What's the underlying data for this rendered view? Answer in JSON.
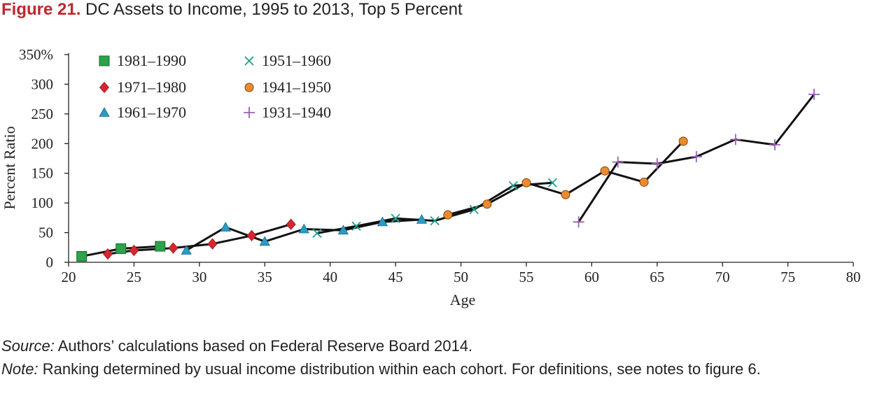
{
  "figure": {
    "number": "Figure 21.",
    "title": "DC Assets to Income, 1995 to 2013, Top 5 Percent",
    "source_label": "Source:",
    "source_text": " Authors’ calculations based on Federal Reserve Board 2014.",
    "note_label": "Note:",
    "note_text": " Ranking determined by usual income distribution within each cohort. For definitions, see notes to figure 6."
  },
  "chart_data": {
    "type": "line",
    "xlabel": "Age",
    "ylabel": "Percent Ratio",
    "xlim": [
      20,
      80
    ],
    "ylim": [
      0,
      350
    ],
    "xticks": [
      20,
      25,
      30,
      35,
      40,
      45,
      50,
      55,
      60,
      65,
      70,
      75,
      80
    ],
    "yticks": [
      0,
      50,
      100,
      150,
      200,
      250,
      300,
      350
    ],
    "ytick_labels": [
      "0",
      "50",
      "100",
      "150",
      "200",
      "250",
      "300",
      "350%"
    ],
    "legend_position": "top-left",
    "grid": false,
    "series": [
      {
        "name": "1981–1990",
        "marker": "square",
        "color": "#2ca24a",
        "x": [
          21,
          24,
          27
        ],
        "y": [
          10,
          23,
          27
        ]
      },
      {
        "name": "1971–1980",
        "marker": "diamond",
        "color": "#d8262f",
        "x": [
          23,
          25,
          28,
          31,
          34,
          37
        ],
        "y": [
          14,
          20,
          24,
          31,
          45,
          64
        ]
      },
      {
        "name": "1961–1970",
        "marker": "triangle",
        "color": "#2a9bc5",
        "x": [
          29,
          32,
          35,
          38,
          41,
          44,
          47
        ],
        "y": [
          20,
          59,
          35,
          56,
          54,
          68,
          72
        ]
      },
      {
        "name": "1951–1960",
        "marker": "x",
        "color": "#1f9e89",
        "x": [
          39,
          42,
          45,
          48,
          51,
          54,
          57
        ],
        "y": [
          49,
          61,
          74,
          70,
          89,
          129,
          134
        ]
      },
      {
        "name": "1941–1950",
        "marker": "circle",
        "color": "#ec8a2f",
        "x": [
          49,
          52,
          55,
          58,
          61,
          64,
          67
        ],
        "y": [
          80,
          98,
          134,
          114,
          154,
          135,
          204
        ]
      },
      {
        "name": "1931–1940",
        "marker": "plus",
        "color": "#9a5fb5",
        "x": [
          59,
          62,
          65,
          68,
          71,
          74,
          77
        ],
        "y": [
          68,
          169,
          166,
          178,
          207,
          198,
          283
        ]
      }
    ]
  }
}
